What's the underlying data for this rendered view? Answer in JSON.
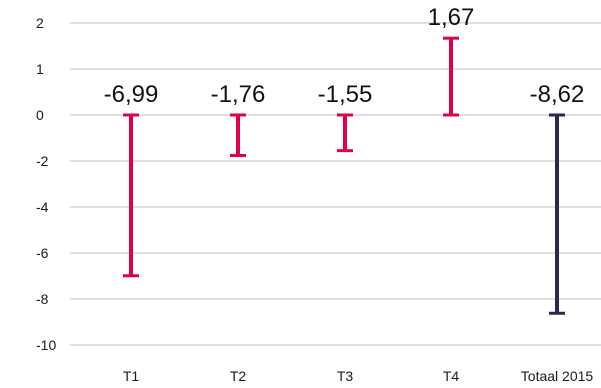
{
  "chart_data": {
    "type": "bar",
    "subtype": "floating-range",
    "categories": [
      "T1",
      "T2",
      "T3",
      "T4",
      "Totaal 2015"
    ],
    "values": [
      -6.99,
      -1.76,
      -1.55,
      1.67,
      -8.62
    ],
    "value_labels": [
      "-6,99",
      "-1,76",
      "-1,55",
      "1,67",
      "-8,62"
    ],
    "yticks": [
      2,
      1,
      0,
      -2,
      -4,
      -6,
      -8,
      -10
    ],
    "ytick_labels": [
      "2",
      "1",
      "0",
      "-2",
      "-4",
      "-6",
      "-8",
      "-10"
    ],
    "grid": true,
    "legend": "none",
    "colors": {
      "positive_quarter": "#e0004d",
      "negative_quarter": "#e0004d",
      "total": "#2e2550"
    },
    "title": "",
    "xlabel": "",
    "ylabel": ""
  }
}
